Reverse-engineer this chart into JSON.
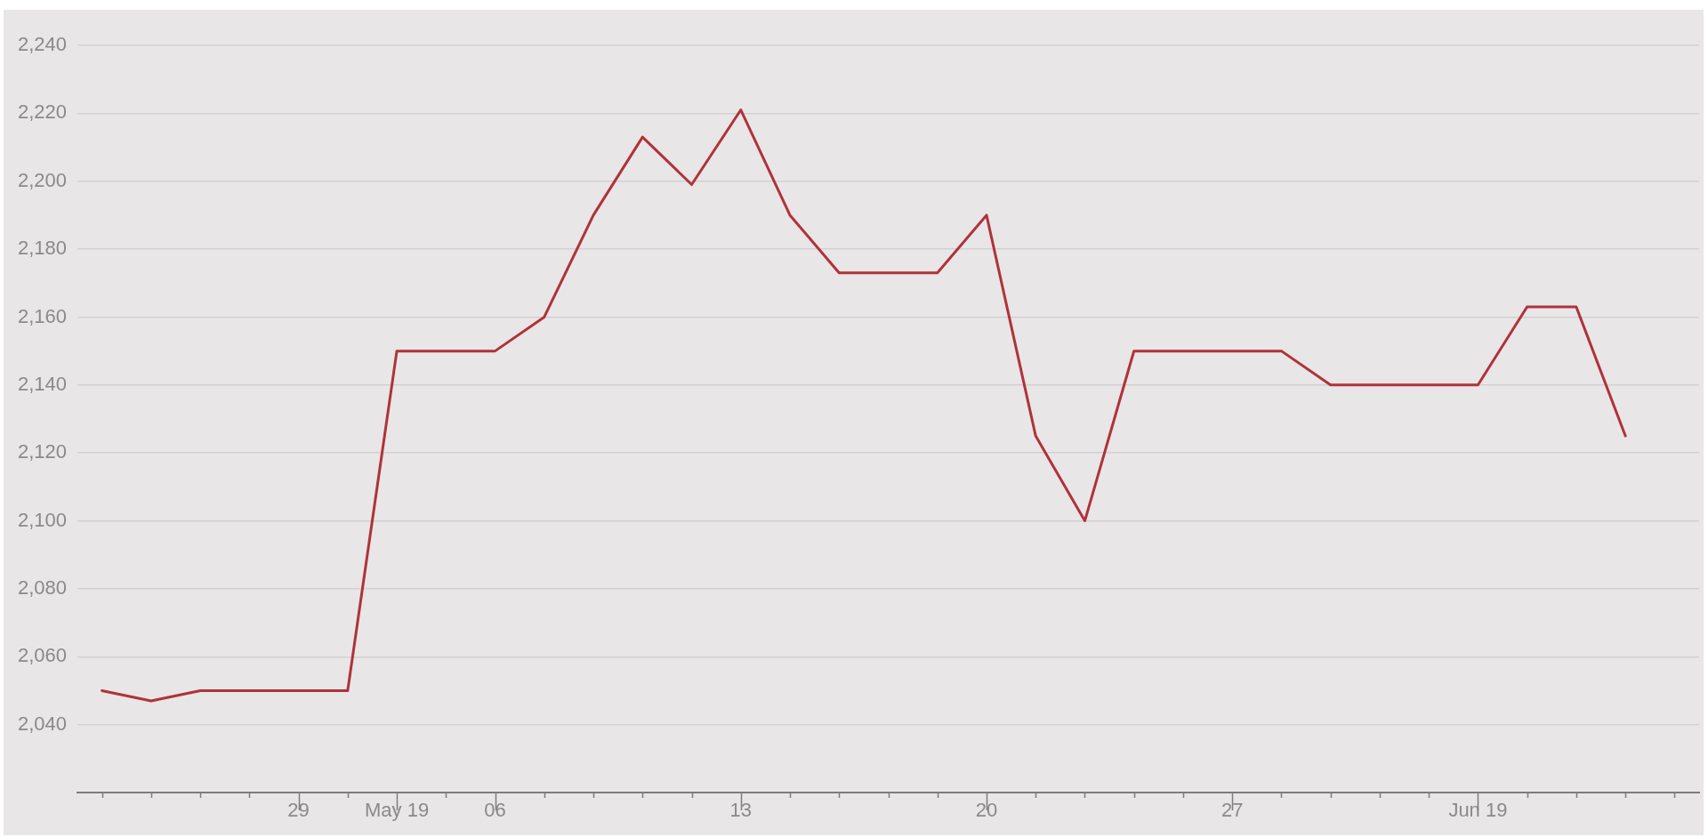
{
  "chart_data": {
    "type": "line",
    "categories": [
      null,
      null,
      null,
      null,
      "29",
      null,
      "May 19",
      null,
      "06",
      null,
      null,
      null,
      null,
      "13",
      null,
      null,
      null,
      null,
      "20",
      null,
      null,
      null,
      null,
      "27",
      null,
      null,
      null,
      null,
      "Jun 19",
      null,
      null,
      null,
      null
    ],
    "series": [
      {
        "color": "#b0323a",
        "values": [
          2050,
          2047,
          2050,
          2050,
          2050,
          2050,
          2150,
          2150,
          2150,
          2160,
          2190,
          2213,
          2199,
          2221,
          2190,
          2173,
          2173,
          2173,
          2190,
          2125,
          2100,
          2150,
          2150,
          2150,
          2150,
          2140,
          2140,
          2140,
          2140,
          2163,
          2163,
          2125,
          null
        ]
      }
    ],
    "ylim": [
      2020,
      2240
    ],
    "yticks": [
      {
        "value": 2040,
        "label": "2,040"
      },
      {
        "value": 2060,
        "label": "2,060"
      },
      {
        "value": 2080,
        "label": "2,080"
      },
      {
        "value": 2100,
        "label": "2,100"
      },
      {
        "value": 2120,
        "label": "2,120"
      },
      {
        "value": 2140,
        "label": "2,140"
      },
      {
        "value": 2160,
        "label": "2,160"
      },
      {
        "value": 2180,
        "label": "2,180"
      },
      {
        "value": 2200,
        "label": "2,200"
      },
      {
        "value": 2220,
        "label": "2,220"
      },
      {
        "value": 2240,
        "label": "2,240"
      }
    ],
    "grid": "y",
    "marker": "none",
    "line_style": "solid"
  }
}
